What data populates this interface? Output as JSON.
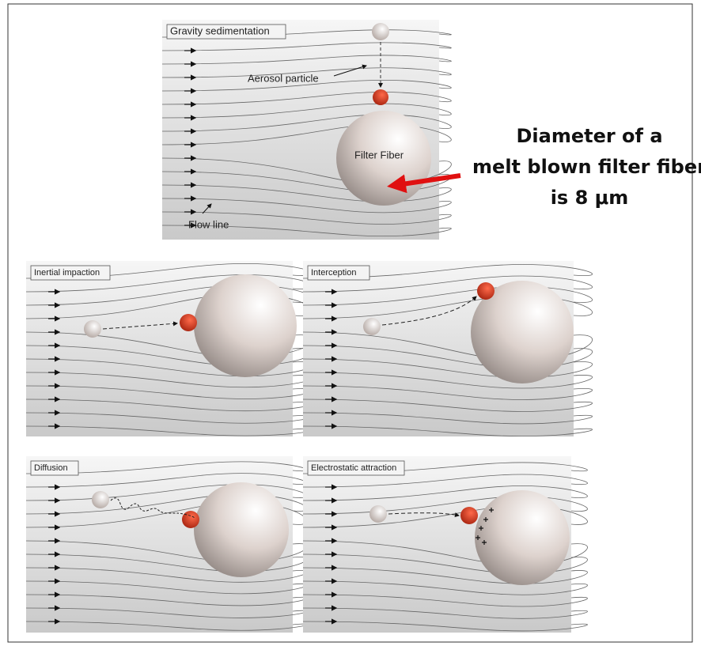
{
  "top_panel": {
    "title": "Gravity sedimentation",
    "particle_label": "Aerosol particle",
    "fiber_label": "Filter Fiber",
    "flow_label": "Flow line"
  },
  "annotation": {
    "lines": [
      "Diameter of a",
      "melt blown filter fiber",
      "is 8 μm"
    ]
  },
  "panels": [
    {
      "title": "Inertial impaction"
    },
    {
      "title": "Interception"
    },
    {
      "title": "Diffusion"
    },
    {
      "title": "Electrostatic attraction"
    }
  ]
}
